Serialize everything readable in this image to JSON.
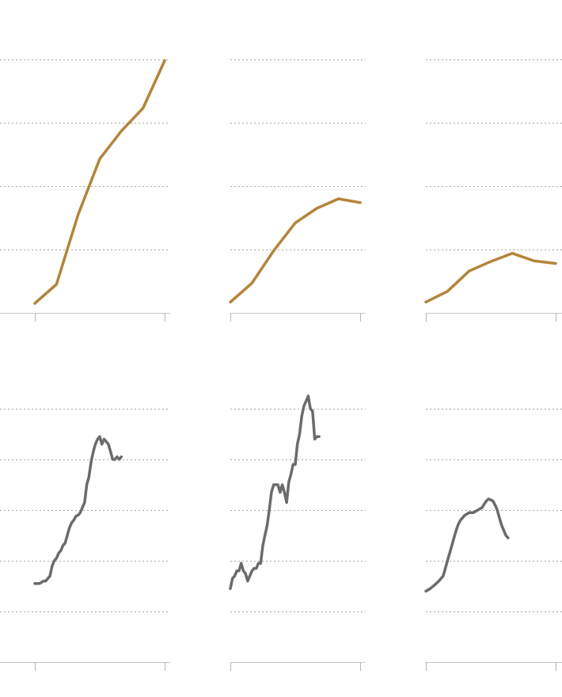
{
  "colors": {
    "top_series": "#b3843a",
    "bottom_series": "#6b6b6b",
    "grid": "#a9a9a9",
    "axis": "#c8c8c8"
  },
  "chart_data": [
    {
      "type": "line",
      "panel": "top-left",
      "title": "",
      "xlabel": "",
      "ylabel": "",
      "xlim": [
        0,
        6
      ],
      "ylim": [
        0,
        4
      ],
      "grid": true,
      "y_gridlines": [
        1,
        2,
        3,
        4
      ],
      "series": [
        {
          "values": [
            [
              0,
              0.15
            ],
            [
              1,
              0.45
            ],
            [
              2,
              1.55
            ],
            [
              3,
              2.43
            ],
            [
              4,
              2.87
            ],
            [
              5,
              3.23
            ],
            [
              6,
              3.98
            ]
          ]
        }
      ]
    },
    {
      "type": "line",
      "panel": "top-middle",
      "title": "",
      "xlabel": "",
      "ylabel": "",
      "xlim": [
        0,
        6
      ],
      "ylim": [
        0,
        4
      ],
      "grid": true,
      "y_gridlines": [
        1,
        2,
        3,
        4
      ],
      "series": [
        {
          "values": [
            [
              0,
              0.17
            ],
            [
              1,
              0.47
            ],
            [
              2,
              0.98
            ],
            [
              3,
              1.42
            ],
            [
              4,
              1.65
            ],
            [
              5,
              1.8
            ],
            [
              6,
              1.74
            ]
          ]
        }
      ]
    },
    {
      "type": "line",
      "panel": "top-right",
      "title": "",
      "xlabel": "",
      "ylabel": "",
      "xlim": [
        0,
        6
      ],
      "ylim": [
        0,
        4
      ],
      "grid": true,
      "y_gridlines": [
        1,
        2,
        3,
        4
      ],
      "series": [
        {
          "values": [
            [
              0,
              0.17
            ],
            [
              1,
              0.34
            ],
            [
              2,
              0.66
            ],
            [
              3,
              0.81
            ],
            [
              4,
              0.94
            ],
            [
              5,
              0.82
            ],
            [
              6,
              0.78
            ]
          ]
        }
      ]
    },
    {
      "type": "line",
      "panel": "bottom-left",
      "title": "",
      "xlabel": "",
      "ylabel": "",
      "xlim": [
        0,
        60
      ],
      "ylim": [
        0,
        5
      ],
      "grid": true,
      "y_gridlines": [
        1,
        2,
        3,
        4,
        5
      ],
      "series": [
        {
          "values": [
            [
              0,
              1.55
            ],
            [
              1,
              1.55
            ],
            [
              2,
              1.55
            ],
            [
              3,
              1.57
            ],
            [
              4,
              1.6
            ],
            [
              5,
              1.6
            ],
            [
              6,
              1.65
            ],
            [
              7,
              1.7
            ],
            [
              8,
              1.9
            ],
            [
              9,
              2.0
            ],
            [
              10,
              2.05
            ],
            [
              11,
              2.15
            ],
            [
              12,
              2.2
            ],
            [
              13,
              2.3
            ],
            [
              14,
              2.35
            ],
            [
              15,
              2.5
            ],
            [
              16,
              2.65
            ],
            [
              17,
              2.75
            ],
            [
              18,
              2.8
            ],
            [
              19,
              2.88
            ],
            [
              20,
              2.9
            ],
            [
              21,
              2.95
            ],
            [
              22,
              3.05
            ],
            [
              23,
              3.15
            ],
            [
              24,
              3.5
            ],
            [
              25,
              3.65
            ],
            [
              26,
              3.95
            ],
            [
              27,
              4.15
            ],
            [
              28,
              4.3
            ],
            [
              29,
              4.4
            ],
            [
              30,
              4.45
            ],
            [
              31,
              4.3
            ],
            [
              32,
              4.4
            ],
            [
              33,
              4.35
            ],
            [
              34,
              4.3
            ],
            [
              35,
              4.15
            ],
            [
              36,
              4.0
            ],
            [
              37,
              4.0
            ],
            [
              38,
              4.05
            ],
            [
              39,
              4.0
            ],
            [
              40,
              4.05
            ]
          ]
        }
      ]
    },
    {
      "type": "line",
      "panel": "bottom-middle",
      "title": "",
      "xlabel": "",
      "ylabel": "",
      "xlim": [
        0,
        60
      ],
      "ylim": [
        0,
        5
      ],
      "grid": true,
      "y_gridlines": [
        1,
        2,
        3,
        4,
        5
      ],
      "series": [
        {
          "values": [
            [
              0,
              1.45
            ],
            [
              1,
              1.65
            ],
            [
              2,
              1.7
            ],
            [
              3,
              1.8
            ],
            [
              4,
              1.8
            ],
            [
              5,
              1.95
            ],
            [
              6,
              1.8
            ],
            [
              7,
              1.75
            ],
            [
              8,
              1.6
            ],
            [
              9,
              1.7
            ],
            [
              10,
              1.8
            ],
            [
              11,
              1.85
            ],
            [
              12,
              1.85
            ],
            [
              13,
              1.95
            ],
            [
              14,
              1.95
            ],
            [
              15,
              2.3
            ],
            [
              16,
              2.5
            ],
            [
              17,
              2.7
            ],
            [
              18,
              3.0
            ],
            [
              19,
              3.35
            ],
            [
              20,
              3.5
            ],
            [
              21,
              3.5
            ],
            [
              22,
              3.5
            ],
            [
              23,
              3.35
            ],
            [
              24,
              3.5
            ],
            [
              25,
              3.35
            ],
            [
              26,
              3.15
            ],
            [
              27,
              3.55
            ],
            [
              28,
              3.7
            ],
            [
              29,
              3.9
            ],
            [
              30,
              3.9
            ],
            [
              31,
              4.3
            ],
            [
              32,
              4.5
            ],
            [
              33,
              4.85
            ],
            [
              34,
              5.05
            ],
            [
              35,
              5.15
            ],
            [
              36,
              5.25
            ],
            [
              37,
              5.0
            ],
            [
              38,
              4.95
            ],
            [
              39,
              4.4
            ],
            [
              40,
              4.45
            ],
            [
              41,
              4.45
            ]
          ]
        }
      ]
    },
    {
      "type": "line",
      "panel": "bottom-right",
      "title": "",
      "xlabel": "",
      "ylabel": "",
      "xlim": [
        0,
        60
      ],
      "ylim": [
        0,
        5
      ],
      "grid": true,
      "y_gridlines": [
        1,
        2,
        3,
        4,
        5
      ],
      "series": [
        {
          "values": [
            [
              0,
              1.4
            ],
            [
              2,
              1.45
            ],
            [
              4,
              1.52
            ],
            [
              6,
              1.6
            ],
            [
              8,
              1.7
            ],
            [
              9,
              1.85
            ],
            [
              10,
              2.0
            ],
            [
              11,
              2.15
            ],
            [
              12,
              2.3
            ],
            [
              13,
              2.45
            ],
            [
              14,
              2.6
            ],
            [
              15,
              2.72
            ],
            [
              16,
              2.8
            ],
            [
              17,
              2.85
            ],
            [
              18,
              2.9
            ],
            [
              19,
              2.92
            ],
            [
              20,
              2.95
            ],
            [
              22,
              2.95
            ],
            [
              24,
              3.0
            ],
            [
              26,
              3.05
            ],
            [
              27,
              3.12
            ],
            [
              28,
              3.18
            ],
            [
              29,
              3.22
            ],
            [
              30,
              3.2
            ],
            [
              31,
              3.18
            ],
            [
              32,
              3.1
            ],
            [
              33,
              3.0
            ],
            [
              34,
              2.85
            ],
            [
              35,
              2.7
            ],
            [
              36,
              2.6
            ],
            [
              37,
              2.5
            ],
            [
              38,
              2.45
            ]
          ]
        }
      ]
    }
  ]
}
